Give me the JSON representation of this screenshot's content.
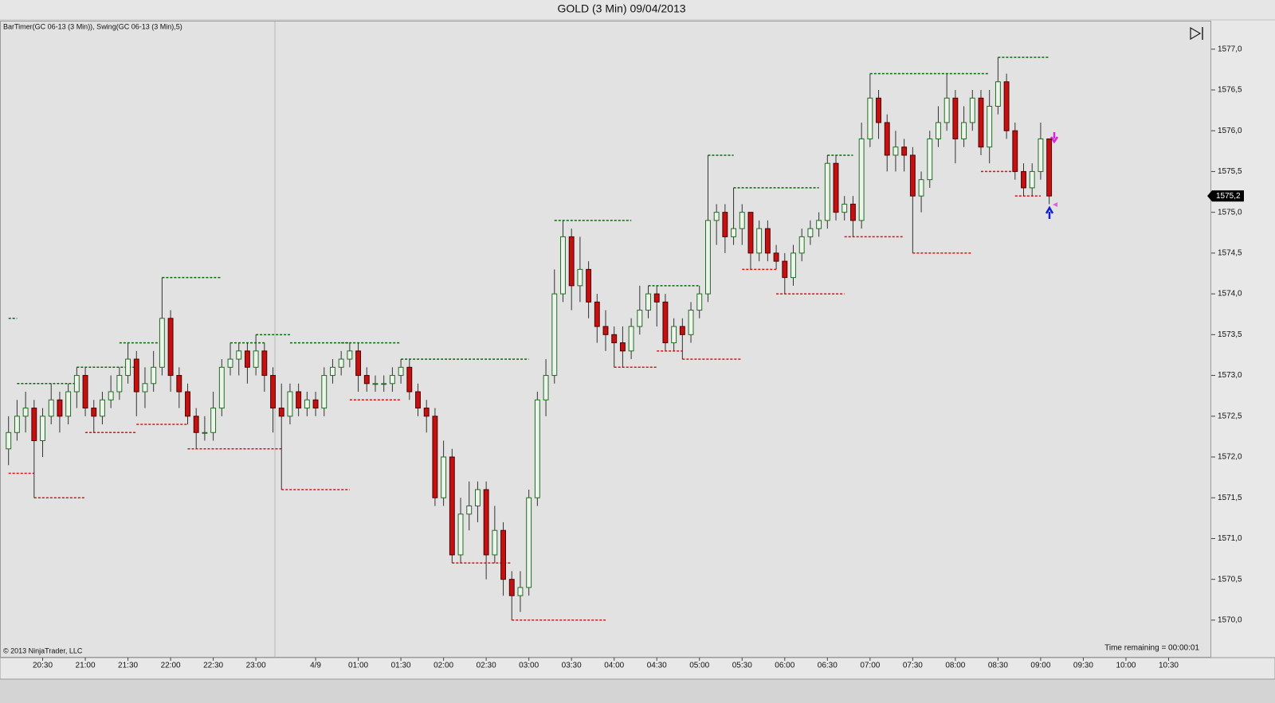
{
  "chart_data": {
    "type": "candlestick",
    "title": "GOLD (3 Min)  09/04/2013",
    "indicator_label": "BarTimer(GC 06-13 (3 Min)), Swing(GC 06-13 (3 Min),5)",
    "copyright": "© 2013 NinjaTrader, LLC",
    "time_remaining": "Time remaining = 00:00:01",
    "last_price": {
      "value": 1575.2,
      "label": "1575,2"
    },
    "open": [
      1572.1,
      1572.3,
      1572.5,
      1572.6,
      1572.2,
      1572.5,
      1572.7,
      1572.5,
      1572.8,
      1573.0,
      1572.6,
      1572.5,
      1572.7,
      1572.8,
      1573.0,
      1573.2,
      1572.8,
      1572.9,
      1573.1,
      1573.7,
      1573.0,
      1572.8,
      1572.5,
      1572.3,
      1572.3,
      1572.6,
      1573.1,
      1573.2,
      1573.3,
      1573.1,
      1573.3,
      1573.0,
      1572.6,
      1572.5,
      1572.8,
      1572.6,
      1572.7,
      1572.6,
      1573.0,
      1573.1,
      1573.2,
      1573.3,
      1573.0,
      1572.9,
      1572.9,
      1572.9,
      1573.0,
      1573.1,
      1572.8,
      1572.6,
      1572.5,
      1571.5,
      1572.0,
      1570.8,
      1571.3,
      1571.4,
      1571.6,
      1570.8,
      1571.1,
      1570.5,
      1570.3,
      1570.4,
      1571.5,
      1572.7,
      1573.0,
      1574.0,
      1574.7,
      1574.1,
      1574.3,
      1573.9,
      1573.6,
      1573.5,
      1573.4,
      1573.3,
      1573.6,
      1573.8,
      1574.0,
      1573.9,
      1573.4,
      1573.6,
      1573.5,
      1573.8,
      1574.0,
      1574.9,
      1575.0,
      1574.7,
      1574.8,
      1575.0,
      1574.5,
      1574.8,
      1574.5,
      1574.4,
      1574.2,
      1574.5,
      1574.7,
      1574.8,
      1574.9,
      1575.6,
      1575.0,
      1575.1,
      1574.9,
      1575.9,
      1576.4,
      1576.1,
      1575.7,
      1575.8,
      1575.7,
      1575.2,
      1575.4,
      1575.9,
      1576.1,
      1576.4,
      1575.9,
      1576.1,
      1576.4,
      1575.8,
      1576.3,
      1576.6,
      1576.0,
      1575.5,
      1575.3,
      1575.5,
      1575.9
    ],
    "high": [
      1572.5,
      1572.7,
      1572.8,
      1572.7,
      1572.6,
      1572.9,
      1572.8,
      1572.9,
      1573.1,
      1573.1,
      1572.7,
      1572.8,
      1573.0,
      1573.1,
      1573.4,
      1573.3,
      1573.1,
      1573.3,
      1574.2,
      1573.8,
      1573.1,
      1572.9,
      1572.6,
      1572.5,
      1572.8,
      1573.2,
      1573.4,
      1573.4,
      1573.4,
      1573.5,
      1573.4,
      1573.1,
      1572.9,
      1572.9,
      1572.9,
      1572.8,
      1572.8,
      1573.1,
      1573.2,
      1573.3,
      1573.4,
      1573.4,
      1573.1,
      1573.0,
      1573.0,
      1573.1,
      1573.2,
      1573.2,
      1572.9,
      1572.7,
      1572.6,
      1572.2,
      1572.1,
      1571.5,
      1571.7,
      1571.7,
      1571.7,
      1571.4,
      1571.2,
      1570.6,
      1570.6,
      1571.6,
      1572.8,
      1573.2,
      1574.3,
      1574.9,
      1574.8,
      1574.7,
      1574.4,
      1574.0,
      1573.8,
      1573.6,
      1573.6,
      1573.7,
      1574.1,
      1574.1,
      1574.1,
      1574.0,
      1573.7,
      1573.7,
      1573.9,
      1574.1,
      1575.7,
      1575.1,
      1575.1,
      1575.3,
      1575.1,
      1575.0,
      1574.9,
      1574.9,
      1574.6,
      1574.5,
      1574.6,
      1574.8,
      1574.9,
      1575.0,
      1575.7,
      1575.7,
      1575.2,
      1575.2,
      1576.1,
      1576.7,
      1576.5,
      1576.2,
      1576.0,
      1575.9,
      1575.8,
      1575.5,
      1576.0,
      1576.3,
      1576.7,
      1576.5,
      1576.3,
      1576.5,
      1576.5,
      1576.5,
      1576.9,
      1576.7,
      1576.1,
      1575.6,
      1575.6,
      1576.1,
      1575.9
    ],
    "low": [
      1571.9,
      1572.2,
      1572.3,
      1571.5,
      1572.0,
      1572.4,
      1572.3,
      1572.4,
      1572.6,
      1572.5,
      1572.3,
      1572.4,
      1572.6,
      1572.7,
      1572.9,
      1572.5,
      1572.6,
      1572.8,
      1573.0,
      1572.8,
      1572.6,
      1572.4,
      1572.1,
      1572.2,
      1572.2,
      1572.5,
      1573.0,
      1573.0,
      1572.9,
      1573.0,
      1572.8,
      1572.3,
      1571.6,
      1572.4,
      1572.5,
      1572.5,
      1572.5,
      1572.5,
      1572.9,
      1573.0,
      1573.1,
      1572.8,
      1572.8,
      1572.8,
      1572.8,
      1572.8,
      1572.9,
      1572.7,
      1572.5,
      1572.3,
      1571.4,
      1571.4,
      1570.7,
      1570.7,
      1571.1,
      1571.2,
      1570.5,
      1570.7,
      1570.3,
      1570.0,
      1570.1,
      1570.3,
      1571.4,
      1572.5,
      1572.9,
      1573.9,
      1573.8,
      1573.9,
      1573.7,
      1573.4,
      1573.3,
      1573.1,
      1573.1,
      1573.2,
      1573.5,
      1573.7,
      1573.6,
      1573.3,
      1573.3,
      1573.2,
      1573.4,
      1573.7,
      1573.9,
      1574.6,
      1574.5,
      1574.6,
      1574.6,
      1574.3,
      1574.4,
      1574.4,
      1574.3,
      1574.0,
      1574.1,
      1574.4,
      1574.6,
      1574.7,
      1574.8,
      1574.9,
      1574.9,
      1574.7,
      1574.8,
      1575.8,
      1575.9,
      1575.5,
      1575.5,
      1575.5,
      1574.5,
      1575.0,
      1575.3,
      1575.8,
      1576.0,
      1575.6,
      1575.8,
      1576.0,
      1575.7,
      1575.6,
      1576.2,
      1575.9,
      1575.4,
      1575.2,
      1575.2,
      1575.4,
      1575.1
    ],
    "close": [
      1572.3,
      1572.5,
      1572.6,
      1572.2,
      1572.5,
      1572.7,
      1572.5,
      1572.8,
      1573.0,
      1572.6,
      1572.5,
      1572.7,
      1572.8,
      1573.0,
      1573.2,
      1572.8,
      1572.9,
      1573.1,
      1573.7,
      1573.0,
      1572.8,
      1572.5,
      1572.3,
      1572.3,
      1572.6,
      1573.1,
      1573.2,
      1573.3,
      1573.1,
      1573.3,
      1573.0,
      1572.6,
      1572.5,
      1572.8,
      1572.6,
      1572.7,
      1572.6,
      1573.0,
      1573.1,
      1573.2,
      1573.3,
      1573.0,
      1572.9,
      1572.9,
      1572.9,
      1573.0,
      1573.1,
      1572.8,
      1572.6,
      1572.5,
      1571.5,
      1572.0,
      1570.8,
      1571.3,
      1571.4,
      1571.6,
      1570.8,
      1571.1,
      1570.5,
      1570.3,
      1570.4,
      1571.5,
      1572.7,
      1573.0,
      1574.0,
      1574.7,
      1574.1,
      1574.3,
      1573.9,
      1573.6,
      1573.5,
      1573.4,
      1573.3,
      1573.6,
      1573.8,
      1574.0,
      1573.9,
      1573.4,
      1573.6,
      1573.5,
      1573.8,
      1574.0,
      1574.9,
      1575.0,
      1574.7,
      1574.8,
      1575.0,
      1574.5,
      1574.8,
      1574.5,
      1574.4,
      1574.2,
      1574.5,
      1574.7,
      1574.8,
      1574.9,
      1575.6,
      1575.0,
      1575.1,
      1574.9,
      1575.9,
      1576.4,
      1576.1,
      1575.7,
      1575.8,
      1575.7,
      1575.2,
      1575.4,
      1575.9,
      1576.1,
      1576.4,
      1575.9,
      1576.1,
      1576.4,
      1575.8,
      1576.3,
      1576.6,
      1576.0,
      1575.5,
      1575.3,
      1575.5,
      1575.9,
      1575.2
    ],
    "up_color": "#1f6e1f",
    "up_fill": "#eef3ee",
    "down_color": "#c41010",
    "wick_color": "#333333",
    "swing_high_color": "#0a6a0a",
    "swing_low_color": "#e01010",
    "swing_highs": [
      {
        "start": 0,
        "end": 1,
        "value": 1573.7
      },
      {
        "start": 1,
        "end": 8,
        "value": 1572.9
      },
      {
        "start": 8,
        "end": 15,
        "value": 1573.1
      },
      {
        "start": 13,
        "end": 18,
        "value": 1573.4
      },
      {
        "start": 18,
        "end": 25,
        "value": 1574.2
      },
      {
        "start": 26,
        "end": 30,
        "value": 1573.4
      },
      {
        "start": 29,
        "end": 33,
        "value": 1573.5
      },
      {
        "start": 33,
        "end": 40,
        "value": 1573.4
      },
      {
        "start": 39,
        "end": 46,
        "value": 1573.4
      },
      {
        "start": 46,
        "end": 61,
        "value": 1573.2
      },
      {
        "start": 64,
        "end": 73,
        "value": 1574.9
      },
      {
        "start": 75,
        "end": 81,
        "value": 1574.1
      },
      {
        "start": 82,
        "end": 85,
        "value": 1575.7
      },
      {
        "start": 85,
        "end": 95,
        "value": 1575.3
      },
      {
        "start": 96,
        "end": 99,
        "value": 1575.7
      },
      {
        "start": 101,
        "end": 115,
        "value": 1576.7
      },
      {
        "start": 116,
        "end": 122,
        "value": 1576.9
      }
    ],
    "swing_lows": [
      {
        "start": 0,
        "end": 3,
        "value": 1571.8
      },
      {
        "start": 3,
        "end": 9,
        "value": 1571.5
      },
      {
        "start": 9,
        "end": 15,
        "value": 1572.3
      },
      {
        "start": 15,
        "end": 21,
        "value": 1572.4
      },
      {
        "start": 21,
        "end": 32,
        "value": 1572.1
      },
      {
        "start": 32,
        "end": 40,
        "value": 1571.6
      },
      {
        "start": 40,
        "end": 46,
        "value": 1572.7
      },
      {
        "start": 52,
        "end": 59,
        "value": 1570.7
      },
      {
        "start": 59,
        "end": 70,
        "value": 1570.0
      },
      {
        "start": 71,
        "end": 76,
        "value": 1573.1
      },
      {
        "start": 76,
        "end": 79,
        "value": 1573.3
      },
      {
        "start": 79,
        "end": 86,
        "value": 1573.2
      },
      {
        "start": 86,
        "end": 90,
        "value": 1574.3
      },
      {
        "start": 90,
        "end": 98,
        "value": 1574.0
      },
      {
        "start": 98,
        "end": 105,
        "value": 1574.7
      },
      {
        "start": 106,
        "end": 113,
        "value": 1574.5
      },
      {
        "start": 114,
        "end": 118,
        "value": 1575.5
      },
      {
        "start": 118,
        "end": 121,
        "value": 1575.2
      }
    ],
    "xlim": [
      -1,
      141
    ],
    "xticks": [
      {
        "value": 4,
        "label": "20:30"
      },
      {
        "value": 9,
        "label": "21:00"
      },
      {
        "value": 14,
        "label": "21:30"
      },
      {
        "value": 19,
        "label": "22:00"
      },
      {
        "value": 24,
        "label": "22:30"
      },
      {
        "value": 29,
        "label": "23:00"
      },
      {
        "value": 36,
        "label": "4/9"
      },
      {
        "value": 41,
        "label": "01:00"
      },
      {
        "value": 46,
        "label": "01:30"
      },
      {
        "value": 51,
        "label": "02:00"
      },
      {
        "value": 56,
        "label": "02:30"
      },
      {
        "value": 61,
        "label": "03:00"
      },
      {
        "value": 66,
        "label": "03:30"
      },
      {
        "value": 71,
        "label": "04:00"
      },
      {
        "value": 76,
        "label": "04:30"
      },
      {
        "value": 81,
        "label": "05:00"
      },
      {
        "value": 86,
        "label": "05:30"
      },
      {
        "value": 91,
        "label": "06:00"
      },
      {
        "value": 96,
        "label": "06:30"
      },
      {
        "value": 101,
        "label": "07:00"
      },
      {
        "value": 106,
        "label": "07:30"
      },
      {
        "value": 111,
        "label": "08:00"
      },
      {
        "value": 116,
        "label": "08:30"
      },
      {
        "value": 121,
        "label": "09:00"
      },
      {
        "value": 126,
        "label": "09:30"
      },
      {
        "value": 131,
        "label": "10:00"
      },
      {
        "value": 136,
        "label": "10:30"
      }
    ],
    "ylim": [
      1569.55,
      1577.31
    ],
    "yticks": [
      {
        "value": 1570,
        "label": "1570,0"
      },
      {
        "value": 1570.5,
        "label": "1570,5"
      },
      {
        "value": 1571,
        "label": "1571,0"
      },
      {
        "value": 1571.5,
        "label": "1571,5"
      },
      {
        "value": 1572,
        "label": "1572,0"
      },
      {
        "value": 1572.5,
        "label": "1572,5"
      },
      {
        "value": 1573,
        "label": "1573,0"
      },
      {
        "value": 1573.5,
        "label": "1573,5"
      },
      {
        "value": 1574,
        "label": "1574,0"
      },
      {
        "value": 1574.5,
        "label": "1574,5"
      },
      {
        "value": 1575,
        "label": "1575,0"
      },
      {
        "value": 1575.5,
        "label": "1575,5"
      },
      {
        "value": 1576,
        "label": "1576,0"
      },
      {
        "value": 1576.5,
        "label": "1576,5"
      },
      {
        "value": 1577,
        "label": "1577,0"
      }
    ],
    "grid": false
  }
}
